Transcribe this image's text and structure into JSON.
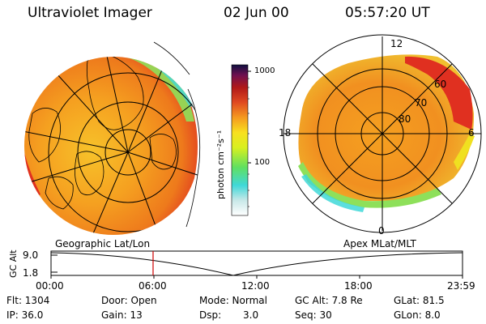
{
  "header": {
    "title": "Ultraviolet Imager",
    "date": "02 Jun 00",
    "time": "05:57:20 UT"
  },
  "colorbar": {
    "unit_label": "photon cm⁻²s⁻¹",
    "tick_high": "1000",
    "tick_low": "100"
  },
  "right_map": {
    "mlt_top": "12",
    "mlt_left": "18",
    "mlt_right": "6",
    "mlt_bottom": "0",
    "lat_60": "60",
    "lat_70": "70",
    "lat_80": "80"
  },
  "timeline": {
    "left_title": "Geographic Lat/Lon",
    "right_title": "Apex MLat/MLT",
    "axis_label": "GC Alt",
    "y_top": "9.0",
    "y_bottom": "1.8",
    "x_ticks": [
      "00:00",
      "06:00",
      "12:00",
      "18:00",
      "23:59"
    ],
    "current_time_fraction": 0.248
  },
  "info": {
    "flt": "Flt: 1304",
    "door": "Door: Open",
    "mode": "Mode: Normal",
    "gc_alt": "GC Alt: 7.8 Re",
    "glat": "GLat: 81.5",
    "ip": "IP: 36.0",
    "gain": "Gain: 13",
    "dsp_label": "Dsp:",
    "dsp_value": "3.0",
    "seq": "Seq: 30",
    "glon": "GLon: 8.0"
  },
  "colors": {
    "aurora_hot": "#e03020",
    "aurora_orange": "#f59a20",
    "aurora_yellow": "#f0e020",
    "aurora_green": "#8ee05a",
    "aurora_cyan": "#40d8d8",
    "marker": "#cc0000"
  }
}
